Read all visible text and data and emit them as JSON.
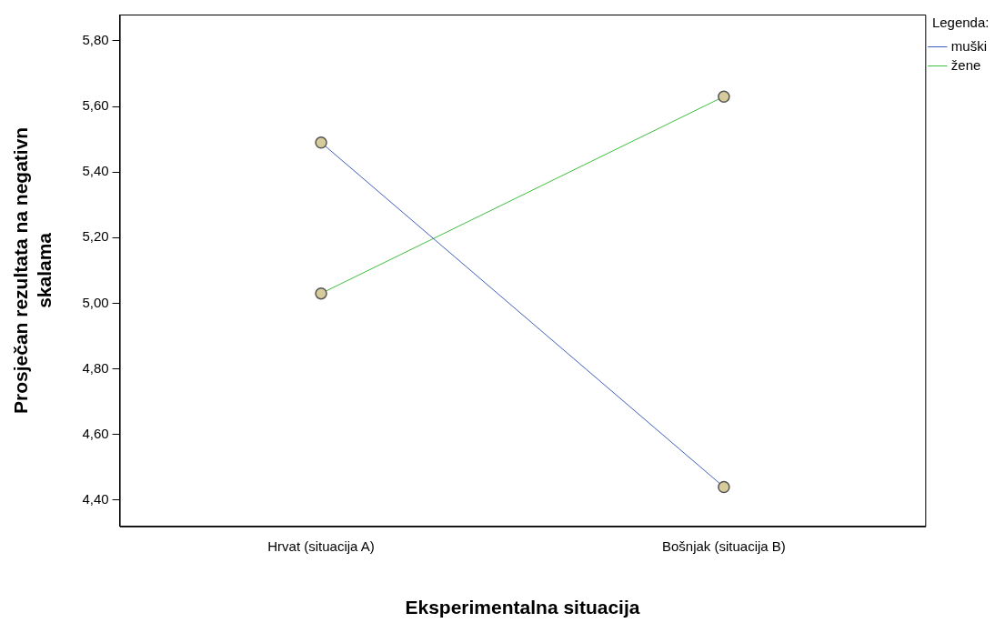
{
  "chart_data": {
    "type": "line",
    "xlabel": "Eksperimentalna situacija",
    "ylabel": "Prosječan rezultata na negativn skalama",
    "legend_title": "Legenda:",
    "categories": [
      "Hrvat (situacija A)",
      "Bošnjak (situacija B)"
    ],
    "series": [
      {
        "name": "muški",
        "color": "#3f5fbf",
        "values": [
          5.49,
          4.44
        ]
      },
      {
        "name": "žene",
        "color": "#3fbf3f",
        "values": [
          5.03,
          5.63
        ]
      }
    ],
    "ylim": [
      4.32,
      5.88
    ],
    "yticks": [
      {
        "value": 4.4,
        "label": "4,40"
      },
      {
        "value": 4.6,
        "label": "4,60"
      },
      {
        "value": 4.8,
        "label": "4,80"
      },
      {
        "value": 5.0,
        "label": "5,00"
      },
      {
        "value": 5.2,
        "label": "5,20"
      },
      {
        "value": 5.4,
        "label": "5,40"
      },
      {
        "value": 5.6,
        "label": "5,60"
      },
      {
        "value": 5.8,
        "label": "5,80"
      }
    ],
    "grid": false,
    "legend": "top right",
    "marker": "circle",
    "line_style": "solid"
  }
}
